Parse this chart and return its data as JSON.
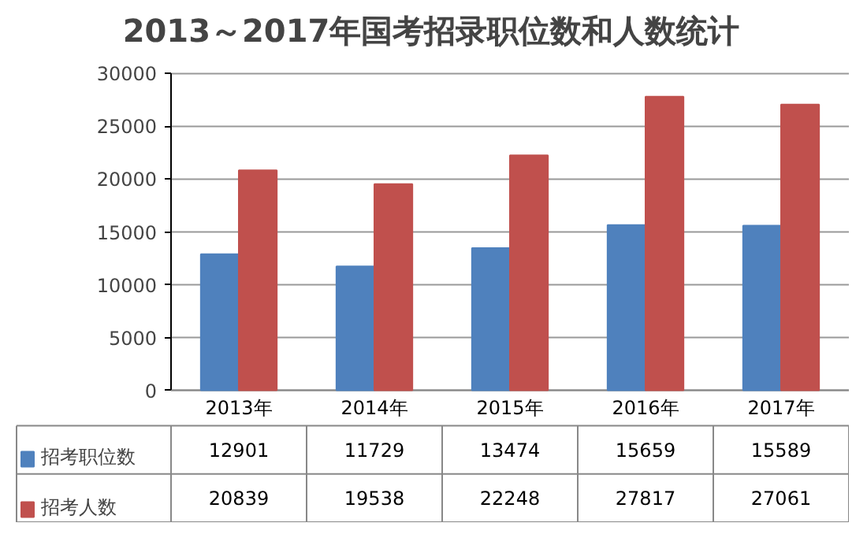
{
  "chart_data": {
    "type": "bar",
    "title": "2013～2017年国考招录职位数和人数统计",
    "categories": [
      "2013年",
      "2014年",
      "2015年",
      "2016年",
      "2017年"
    ],
    "series": [
      {
        "name": "招考职位数",
        "color": "#4f81bd",
        "values": [
          12901,
          11729,
          13474,
          15659,
          15589
        ]
      },
      {
        "name": "招考人数",
        "color": "#c0504d",
        "values": [
          20839,
          19538,
          22248,
          27817,
          27061
        ]
      }
    ],
    "ylim": [
      0,
      30000
    ],
    "yticks": [
      0,
      5000,
      10000,
      15000,
      20000,
      25000,
      30000
    ],
    "grid": "y",
    "legend": "bottom left",
    "data_labels": true
  }
}
